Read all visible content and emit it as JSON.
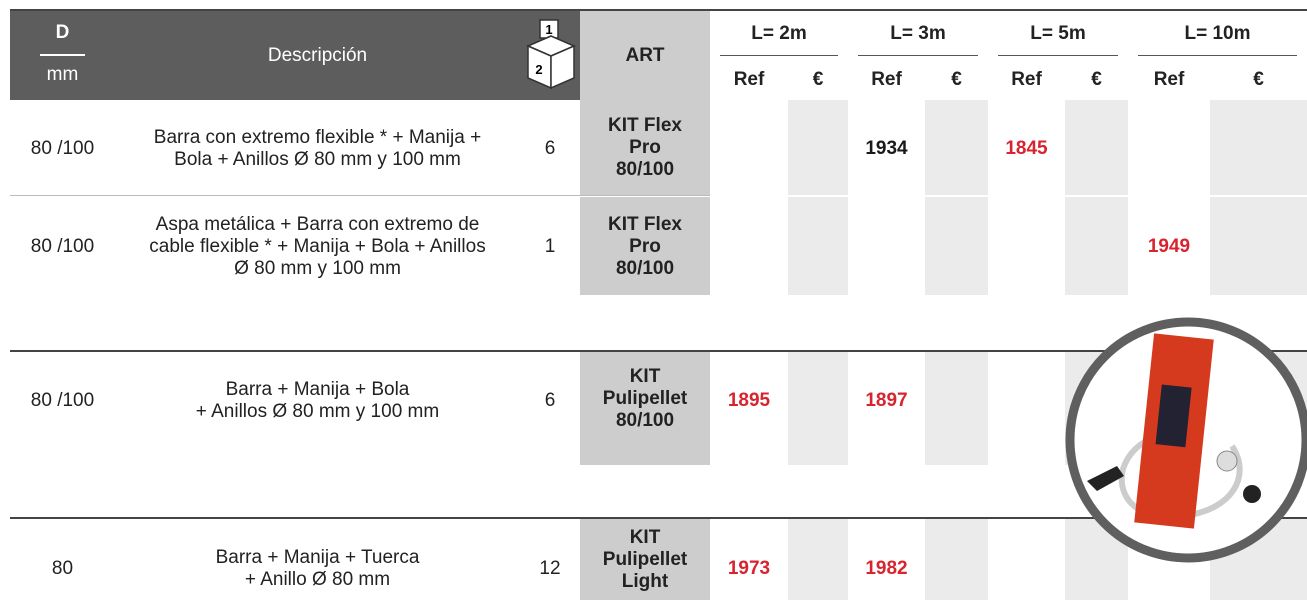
{
  "header": {
    "d": "D",
    "unit": "mm",
    "description": "Descripción",
    "box_top": "1",
    "box_bottom": "2",
    "art": "ART",
    "lengths": [
      "L= 2m",
      "L= 3m",
      "L= 5m",
      "L= 10m"
    ],
    "subheaders": [
      "Ref",
      "€",
      "Ref",
      "€",
      "Ref",
      "€",
      "Ref",
      "€"
    ]
  },
  "rows": [
    {
      "d": "80 /100",
      "description": [
        "Barra con extremo flexible * + Manija +",
        "Bola + Anillos Ø 80 mm y 100 mm"
      ],
      "qty": "6",
      "art": [
        "KIT Flex",
        "Pro",
        "80/100"
      ],
      "refs": [
        null,
        {
          "text": "1934",
          "color": "#1a1a1a"
        },
        {
          "text": "1845",
          "color": "#d9232e"
        },
        null
      ]
    },
    {
      "d": "80 /100",
      "description": [
        "Aspa metálica + Barra con extremo de",
        "cable flexible * + Manija + Bola + Anillos",
        "Ø 80 mm y 100 mm"
      ],
      "qty": "1",
      "art": [
        "KIT Flex",
        "Pro",
        "80/100"
      ],
      "refs": [
        null,
        null,
        null,
        {
          "text": "1949",
          "color": "#d9232e"
        }
      ]
    },
    {
      "d": "80 /100",
      "description": [
        "Barra + Manija + Bola",
        "+ Anillos Ø 80 mm y 100 mm"
      ],
      "qty": "6",
      "art": [
        "KIT",
        "Pulipellet",
        "80/100"
      ],
      "refs": [
        {
          "text": "1895",
          "color": "#d9232e"
        },
        {
          "text": "1897",
          "color": "#d9232e"
        },
        null,
        null
      ]
    },
    {
      "d": "80",
      "description": [
        "Barra + Manija + Tuerca",
        "+ Anillo Ø 80 mm"
      ],
      "qty": "12",
      "art": [
        "KIT",
        "Pulipellet",
        "Light"
      ],
      "refs": [
        {
          "text": "1973",
          "color": "#d9232e"
        },
        {
          "text": "1982",
          "color": "#d9232e"
        },
        null,
        null
      ]
    }
  ]
}
